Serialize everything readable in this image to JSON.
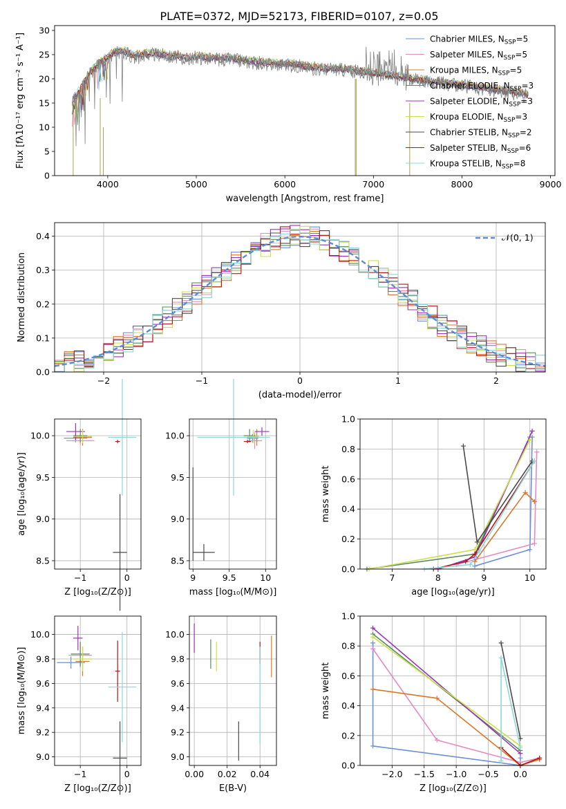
{
  "figure": {
    "title": "PLATE=0372, MJD=52173, FIBERID=0107, z=0.05"
  },
  "colors": {
    "Chabrier MILES": "#6a8fd8",
    "Salpeter MILES": "#e58ac0",
    "Kroupa MILES": "#d8772a",
    "Chabrier ELODIE": "#5a8a5a",
    "Salpeter ELODIE": "#9b30b8",
    "Kroupa ELODIE": "#c8e04a",
    "Chabrier STELIB": "#4a4a4a",
    "Salpeter STELIB": "#b01818",
    "Kroupa STELIB": "#8ad8d8",
    "data": "#808080",
    "gauss": "#5b8bd8"
  },
  "chart_data": [
    {
      "id": "spectrum",
      "type": "line",
      "xlabel": "wavelength [Angstrom, rest frame]",
      "ylabel": "Flux [fλ10⁻¹⁷ erg cm⁻² s⁻¹ A⁻¹]",
      "xlim": [
        3400,
        9050
      ],
      "ylim": [
        0,
        31
      ],
      "xticks": [
        "4000",
        "5000",
        "6000",
        "7000",
        "8000",
        "9000"
      ],
      "yticks": [
        "0",
        "5",
        "10",
        "15",
        "20",
        "25",
        "30"
      ],
      "grid": false,
      "legend_placement": "top-right",
      "legend": [
        {
          "name": "Chabrier MILES",
          "nssp": "5"
        },
        {
          "name": "Salpeter MILES",
          "nssp": "5"
        },
        {
          "name": "Kroupa MILES",
          "nssp": "5"
        },
        {
          "name": "Chabrier ELODIE",
          "nssp": "3"
        },
        {
          "name": "Salpeter ELODIE",
          "nssp": "3"
        },
        {
          "name": "Kroupa ELODIE",
          "nssp": "3"
        },
        {
          "name": "Chabrier STELIB",
          "nssp": "2"
        },
        {
          "name": "Salpeter STELIB",
          "nssp": "6"
        },
        {
          "name": "Kroupa STELIB",
          "nssp": "8"
        }
      ],
      "continuum": {
        "x": [
          3600,
          3700,
          3800,
          3900,
          4000,
          4100,
          4200,
          4300,
          4400,
          4500,
          4600,
          4700,
          4800,
          4900,
          5000,
          5200,
          5400,
          5600,
          5800,
          6000,
          6200,
          6400,
          6600,
          6800,
          7000,
          7200,
          7400,
          7600,
          7800,
          8000,
          8200,
          8400,
          8600,
          8750
        ],
        "y": [
          15,
          18,
          21,
          23,
          24.5,
          25.5,
          25.5,
          24.5,
          25,
          25,
          25,
          24.5,
          24.5,
          24,
          24.5,
          24,
          24,
          23.5,
          23,
          23,
          22.5,
          22,
          22,
          21.5,
          21,
          20.5,
          20,
          19.5,
          19,
          18.5,
          18,
          17.5,
          17,
          16.5
        ]
      }
    },
    {
      "id": "residuals",
      "type": "line",
      "xlabel": "(data-model)/error",
      "ylabel": "Normed distribution",
      "xlim": [
        -2.5,
        2.5
      ],
      "ylim": [
        0,
        0.44
      ],
      "xticks": [
        "−2",
        "−1",
        "0",
        "1",
        "2"
      ],
      "yticks": [
        "0.0",
        "0.1",
        "0.2",
        "0.3",
        "0.4"
      ],
      "grid": true,
      "legend_label": "𝒩(0, 1)",
      "legend_placement": "top-right"
    },
    {
      "id": "age_vs_Z",
      "type": "scatter",
      "xlabel": "Z [log₁₀(Z/Z⊙)]",
      "ylabel": "age  [log₁₀(age/yr)]",
      "xlim": [
        -1.55,
        0.3
      ],
      "ylim": [
        8.4,
        10.2
      ],
      "xticks": [
        "−1",
        "0"
      ],
      "yticks": [
        "8.5",
        "9.0",
        "9.5",
        "10.0"
      ],
      "grid": true
    },
    {
      "id": "age_vs_mass",
      "type": "scatter",
      "xlabel": "mass [log₁₀(M/M⊙)]",
      "ylabel": "",
      "xlim": [
        8.95,
        10.15
      ],
      "ylim": [
        8.4,
        10.2
      ],
      "xticks": [
        "9",
        "9.5",
        "10"
      ],
      "yticks": [
        "8.5",
        "9.0",
        "9.5",
        "10.0"
      ],
      "grid": true
    },
    {
      "id": "massweight_vs_age",
      "type": "line",
      "xlabel": "age  [log₁₀(age/yr)]",
      "ylabel": "mass weight",
      "xlim": [
        6.3,
        10.35
      ],
      "ylim": [
        0,
        1.0
      ],
      "xticks": [
        "7",
        "8",
        "9",
        "10"
      ],
      "yticks": [
        "0.0",
        "0.2",
        "0.4",
        "0.6",
        "0.8",
        "1.0"
      ],
      "grid": true,
      "series": [
        {
          "name": "Chabrier MILES",
          "x": [
            8.8,
            10.0,
            10.05
          ],
          "y": [
            0.02,
            0.13,
            0.88
          ]
        },
        {
          "name": "Salpeter MILES",
          "x": [
            8.4,
            10.1,
            10.15
          ],
          "y": [
            0.03,
            0.17,
            0.78
          ]
        },
        {
          "name": "Kroupa MILES",
          "x": [
            8.8,
            9.9,
            10.1
          ],
          "y": [
            0.05,
            0.51,
            0.45
          ]
        },
        {
          "name": "Chabrier ELODIE",
          "x": [
            6.45,
            8.8,
            10.0
          ],
          "y": [
            0.0,
            0.1,
            0.88
          ]
        },
        {
          "name": "Salpeter ELODIE",
          "x": [
            8.0,
            8.8,
            10.05
          ],
          "y": [
            0.0,
            0.08,
            0.92
          ]
        },
        {
          "name": "Kroupa ELODIE",
          "x": [
            6.5,
            8.8,
            10.0
          ],
          "y": [
            0.0,
            0.13,
            0.86
          ]
        },
        {
          "name": "Chabrier STELIB",
          "x": [
            8.55,
            8.85,
            10.05
          ],
          "y": [
            0.82,
            0.18,
            0.72
          ]
        },
        {
          "name": "Salpeter STELIB",
          "x": [
            7.9,
            8.6,
            8.8,
            10.1
          ],
          "y": [
            0.0,
            0.05,
            0.1,
            0.72
          ]
        },
        {
          "name": "Kroupa STELIB",
          "x": [
            7.7,
            8.7,
            8.9,
            10.1
          ],
          "y": [
            0.0,
            0.03,
            0.12,
            0.72
          ]
        }
      ]
    },
    {
      "id": "mass_vs_Z",
      "type": "scatter",
      "xlabel": "Z [log₁₀(Z/Z⊙)]",
      "ylabel": "mass [log₁₀(M/M⊙)]",
      "xlim": [
        -1.55,
        0.3
      ],
      "ylim": [
        8.93,
        10.15
      ],
      "xticks": [
        "−1",
        "0"
      ],
      "yticks": [
        "9.0",
        "9.2",
        "9.4",
        "9.6",
        "9.8",
        "10.0"
      ],
      "grid": true
    },
    {
      "id": "mass_vs_EBV",
      "type": "scatter",
      "xlabel": "E(B-V)",
      "ylabel": "",
      "xlim": [
        -0.003,
        0.05
      ],
      "ylim": [
        8.93,
        10.15
      ],
      "xticks": [
        "0.00",
        "0.02",
        "0.04"
      ],
      "yticks": [
        "9.0",
        "9.2",
        "9.4",
        "9.6",
        "9.8",
        "10.0"
      ],
      "grid": true
    },
    {
      "id": "massweight_vs_Z",
      "type": "line",
      "xlabel": "Z [log₁₀(Z/Z⊙)]",
      "ylabel": "mass weight",
      "xlim": [
        -2.5,
        0.4
      ],
      "ylim": [
        0,
        1.0
      ],
      "xticks": [
        "−2.0",
        "−1.5",
        "−1.0",
        "−0.5",
        "0.0"
      ],
      "yticks": [
        "0.0",
        "0.2",
        "0.4",
        "0.6",
        "0.8",
        "1.0"
      ],
      "grid": true,
      "series": [
        {
          "name": "Chabrier MILES",
          "x": [
            -2.3,
            -2.3,
            0.0,
            0.0
          ],
          "y": [
            0.82,
            0.13,
            0.0,
            0.05
          ]
        },
        {
          "name": "Salpeter MILES",
          "x": [
            -2.3,
            -1.3,
            0.0,
            0.3
          ],
          "y": [
            0.78,
            0.17,
            0.02,
            0.05
          ]
        },
        {
          "name": "Kroupa MILES",
          "x": [
            -2.3,
            -1.3,
            0.0,
            0.3
          ],
          "y": [
            0.51,
            0.45,
            0.0,
            0.04
          ]
        },
        {
          "name": "Chabrier ELODIE",
          "x": [
            -2.3,
            0.0
          ],
          "y": [
            0.88,
            0.1
          ]
        },
        {
          "name": "Salpeter ELODIE",
          "x": [
            -2.3,
            0.0
          ],
          "y": [
            0.92,
            0.08
          ]
        },
        {
          "name": "Kroupa ELODIE",
          "x": [
            -2.3,
            0.0
          ],
          "y": [
            0.86,
            0.13
          ]
        },
        {
          "name": "Chabrier STELIB",
          "x": [
            -0.3,
            0.0
          ],
          "y": [
            0.82,
            0.18
          ]
        },
        {
          "name": "Salpeter STELIB",
          "x": [
            -0.3,
            0.0,
            0.3
          ],
          "y": [
            0.12,
            0.0,
            0.05
          ]
        },
        {
          "name": "Kroupa STELIB",
          "x": [
            -0.3,
            -0.3,
            0.0
          ],
          "y": [
            0.03,
            0.72,
            0.12
          ]
        }
      ]
    }
  ]
}
